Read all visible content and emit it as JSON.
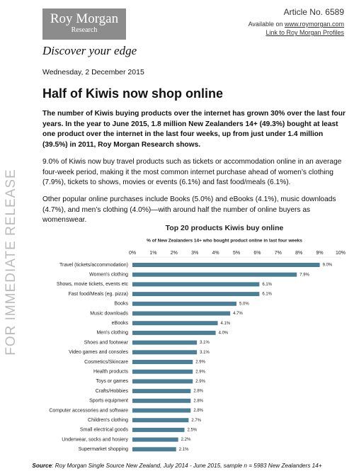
{
  "header": {
    "logo_name": "Roy Morgan",
    "logo_sub": "Research",
    "tagline": "Discover your edge",
    "article_no": "Article No. 6589",
    "available_prefix": "Available on ",
    "available_link": "www.roymorgan.com",
    "profiles_link": "Link to Roy Morgan Profiles"
  },
  "side_label": "FOR IMMEDIATE RELEASE",
  "date": "Wednesday, 2 December 2015",
  "title": "Half of Kiwis now shop online",
  "paragraphs": [
    "The number of Kiwis buying products over the internet has grown 30% over the last four years. In the year to June 2015, 1.8 million New Zealanders 14+ (49.3%) bought at least one product over the internet in the last four weeks, up from just under 1.4 million (39.5%) in 2011, Roy Morgan Research shows.",
    "9.0% of Kiwis now buy travel products such as tickets or accommodation online in an average four-week period, making it the most common internet purchase ahead of women’s clothing (7.9%), tickets to shows, movies or events (6.1%) and fast food/meals (6.1%).",
    "Other popular online purchases include Books (5.0%) and eBooks (4.1%), music downloads (4.7%), and men’s clothing (4.0%)—with around half the number of online buyers as womenswear."
  ],
  "chart_data": {
    "type": "hbar",
    "title": "Top 20 products Kiwis buy online",
    "subtitle": "% of New Zealanders 14+ who bought product online in last four weeks",
    "color": "#4a7f96",
    "categories": [
      "Travel (tickets/accommodation)",
      "Women's clothing",
      "Shows, movie tickets, events etc",
      "Fast food/Meals (eg. pizza)",
      "Books",
      "Music downloads",
      "eBooks",
      "Men's clothing",
      "Shoes and footwear",
      "Video games and consoles",
      "Cosmetics/Skincare",
      "Health products",
      "Toys or games",
      "Crafts/Hobbies",
      "Sports equipment",
      "Computer accessories and software",
      "Children's clothing",
      "Small electrical goods",
      "Underwear, socks and hosiery",
      "Supermarket shopping"
    ],
    "values": [
      9.0,
      7.9,
      6.1,
      6.1,
      5.0,
      4.7,
      4.1,
      4.0,
      3.1,
      3.1,
      2.9,
      2.9,
      2.9,
      2.8,
      2.8,
      2.8,
      2.7,
      2.5,
      2.2,
      2.1
    ],
    "value_labels": [
      "9.0%",
      "7.9%",
      "6.1%",
      "6.1%",
      "5.0%",
      "4.7%",
      "4.1%",
      "4.0%",
      "3.1%",
      "3.1%",
      "2.9%",
      "2.9%",
      "2.9%",
      "2.8%",
      "2.8%",
      "2.8%",
      "2.7%",
      "2.5%",
      "2.2%",
      "2.1%"
    ],
    "xlim": [
      0,
      10
    ],
    "xticks": [
      {
        "value": 0,
        "label": "0%"
      },
      {
        "value": 1,
        "label": "1%"
      },
      {
        "value": 2,
        "label": "2%"
      },
      {
        "value": 3,
        "label": "3%"
      },
      {
        "value": 4,
        "label": "4%"
      },
      {
        "value": 5,
        "label": "5%"
      },
      {
        "value": 6,
        "label": "6%"
      },
      {
        "value": 7,
        "label": "7%"
      },
      {
        "value": 8,
        "label": "8%"
      },
      {
        "value": 9,
        "label": "9%"
      },
      {
        "value": 10,
        "label": "10%"
      }
    ]
  },
  "source": {
    "label": "Source",
    "text": ": Roy Morgan Single Source New Zealand, July 2014 - June 2015, sample n = 5983 New Zealanders 14+"
  }
}
